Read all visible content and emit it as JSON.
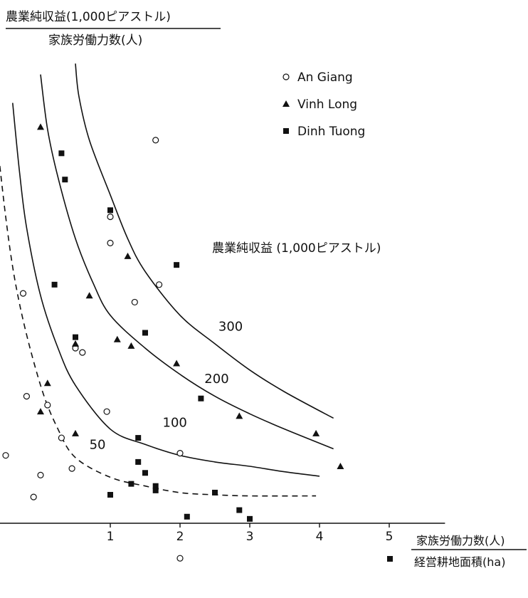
{
  "chart_data": {
    "type": "scatter",
    "ylabel_top": "農業純収益(1,000ピアストル)",
    "ylabel_bottom": "家族労働力数(人)",
    "xlabel_top": "家族労働力数(人)",
    "xlabel_bottom": "経営耕地面積(ha)",
    "xlim": [
      -0.95,
      5.8
    ],
    "ylim": [
      -30,
      220
    ],
    "x_ticks": [
      1,
      2,
      3,
      4,
      5
    ],
    "y_ticks": [
      -25,
      0,
      50,
      100,
      150,
      200
    ],
    "grid": false,
    "legend_position": "top-right",
    "series": [
      {
        "name": "An Giang",
        "marker": "open-circle",
        "points": [
          [
            -0.75,
            208
          ],
          [
            -0.65,
            101
          ],
          [
            -0.5,
            31
          ],
          [
            -0.25,
            105
          ],
          [
            -0.2,
            58
          ],
          [
            -0.1,
            12
          ],
          [
            0,
            22
          ],
          [
            0.1,
            54
          ],
          [
            0.3,
            39
          ],
          [
            0.45,
            25
          ],
          [
            0.5,
            80
          ],
          [
            0.6,
            78
          ],
          [
            0.95,
            51
          ],
          [
            1.0,
            140
          ],
          [
            1.0,
            128
          ],
          [
            1.35,
            101
          ],
          [
            1.65,
            175
          ],
          [
            1.7,
            109
          ],
          [
            2.0,
            32
          ],
          [
            2.0,
            -16
          ]
        ]
      },
      {
        "name": "Vinh Long",
        "marker": "filled-triangle",
        "points": [
          [
            0,
            181
          ],
          [
            0,
            51
          ],
          [
            0.1,
            64
          ],
          [
            0.5,
            82
          ],
          [
            0.5,
            41
          ],
          [
            0.7,
            104
          ],
          [
            1.1,
            84
          ],
          [
            1.25,
            122
          ],
          [
            1.3,
            81
          ],
          [
            1.95,
            73
          ],
          [
            2.85,
            49
          ],
          [
            3.95,
            41
          ],
          [
            4.3,
            26
          ]
        ]
      },
      {
        "name": "Dinh Tuong",
        "marker": "filled-square",
        "points": [
          [
            0.3,
            169
          ],
          [
            0.35,
            157
          ],
          [
            0.2,
            109
          ],
          [
            0.5,
            85
          ],
          [
            1.0,
            143
          ],
          [
            1.0,
            13
          ],
          [
            1.3,
            18
          ],
          [
            1.4,
            39
          ],
          [
            1.4,
            28
          ],
          [
            1.5,
            87
          ],
          [
            1.5,
            23
          ],
          [
            1.65,
            17
          ],
          [
            1.65,
            15
          ],
          [
            1.95,
            118
          ],
          [
            2.1,
            3
          ],
          [
            2.3,
            57
          ],
          [
            2.5,
            14
          ],
          [
            2.85,
            6
          ],
          [
            3.0,
            2
          ]
        ]
      }
    ],
    "iso_curves": {
      "title": "農業純収益 (1,000ピアストル)",
      "curves": [
        {
          "label": "50",
          "style": "dashed",
          "points": [
            [
              -0.75,
              213
            ],
            [
              -0.5,
              140
            ],
            [
              -0.3,
              100
            ],
            [
              0,
              63
            ],
            [
              0.25,
              43
            ],
            [
              0.5,
              30
            ],
            [
              1,
              21
            ],
            [
              1.5,
              17
            ],
            [
              2,
              14
            ],
            [
              2.5,
              13
            ],
            [
              3,
              12.5
            ],
            [
              3.95,
              12.5
            ]
          ]
        },
        {
          "label": "100",
          "style": "solid",
          "points": [
            [
              -0.4,
              192
            ],
            [
              -0.3,
              160
            ],
            [
              -0.2,
              135
            ],
            [
              0,
              104
            ],
            [
              0.25,
              80
            ],
            [
              0.5,
              63
            ],
            [
              1,
              43
            ],
            [
              1.5,
              36
            ],
            [
              2,
              31
            ],
            [
              2.5,
              28
            ],
            [
              3,
              26
            ],
            [
              3.5,
              23.5
            ],
            [
              4.0,
              21.5
            ]
          ]
        },
        {
          "label": "200",
          "style": "solid",
          "points": [
            [
              0,
              205
            ],
            [
              0.1,
              180
            ],
            [
              0.25,
              158
            ],
            [
              0.5,
              130
            ],
            [
              0.75,
              110
            ],
            [
              1,
              95
            ],
            [
              1.5,
              80
            ],
            [
              2,
              68
            ],
            [
              2.5,
              58
            ],
            [
              3,
              50
            ],
            [
              3.5,
              43
            ],
            [
              4.2,
              34
            ]
          ]
        },
        {
          "label": "300",
          "style": "solid",
          "points": [
            [
              0.5,
              210
            ],
            [
              0.55,
              195
            ],
            [
              0.7,
              175
            ],
            [
              1,
              150
            ],
            [
              1.25,
              130
            ],
            [
              1.5,
              115
            ],
            [
              2,
              95
            ],
            [
              2.5,
              82
            ],
            [
              3,
              70
            ],
            [
              3.5,
              60
            ],
            [
              4.2,
              48
            ]
          ]
        }
      ]
    }
  }
}
